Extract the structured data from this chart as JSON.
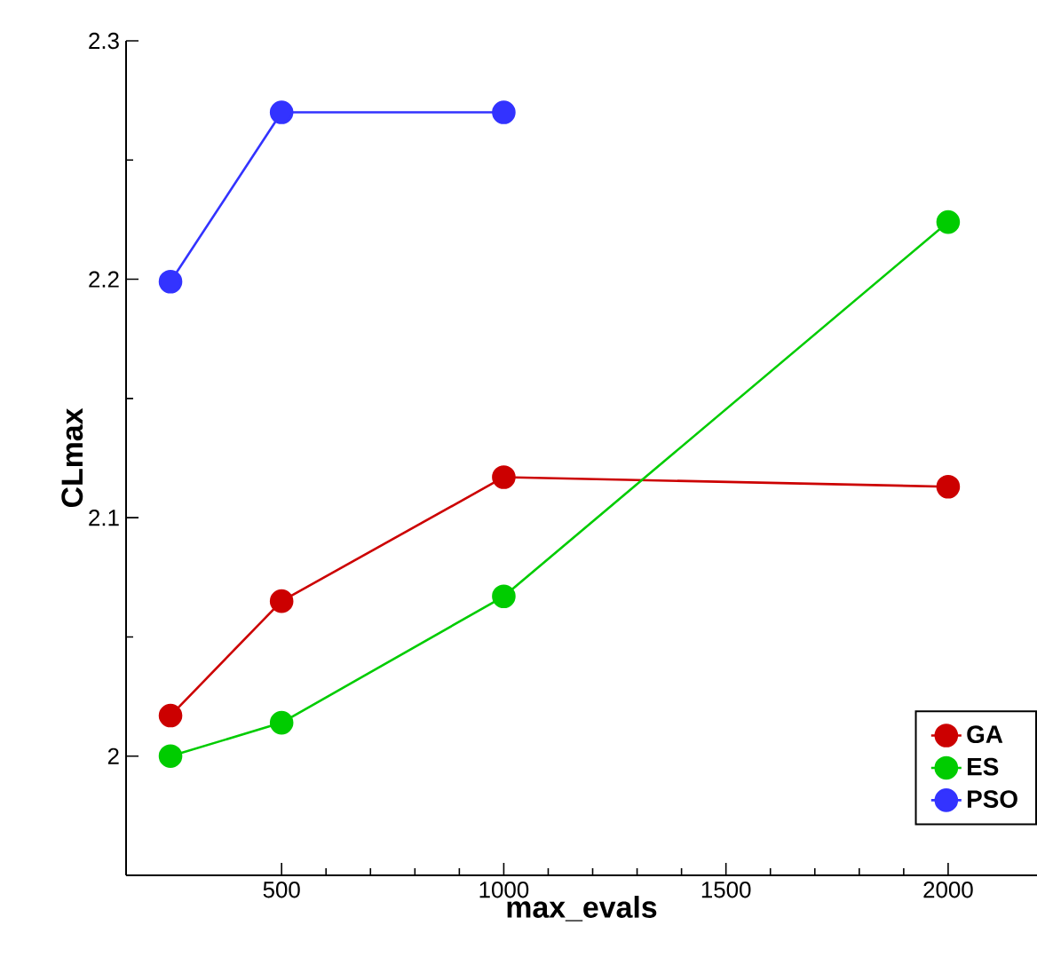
{
  "chart_data": {
    "type": "line",
    "xlabel": "max_evals",
    "ylabel": "CLmax",
    "x": [
      250,
      500,
      1000,
      2000
    ],
    "series": [
      {
        "name": "GA",
        "color": "#cc0000",
        "values": [
          2.017,
          2.065,
          2.117,
          2.113
        ]
      },
      {
        "name": "ES",
        "color": "#00cc00",
        "values": [
          2.0,
          2.014,
          2.067,
          2.224
        ]
      },
      {
        "name": "PSO",
        "color": "#3333ff",
        "values": [
          2.199,
          2.27,
          2.27,
          null
        ]
      }
    ],
    "xlim": [
      150,
      2200
    ],
    "ylim": [
      1.95,
      2.3
    ],
    "xticks": [
      500,
      1000,
      1500,
      2000
    ],
    "yticks": [
      2,
      2.1,
      2.2,
      2.3
    ],
    "marker": "circle",
    "line_style": "solid",
    "grid": false,
    "legend": "bottom right"
  }
}
